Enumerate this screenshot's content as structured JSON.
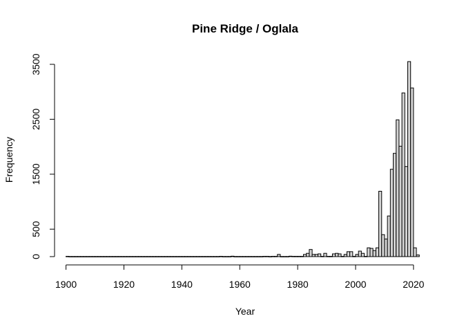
{
  "chart_data": {
    "type": "bar",
    "title": "Pine Ridge / Oglala",
    "xlabel": "Year",
    "ylabel": "Frequency",
    "xlim": [
      1900,
      2023
    ],
    "ylim": [
      0,
      3500
    ],
    "xticks": [
      1900,
      1920,
      1940,
      1960,
      1980,
      2000,
      2020
    ],
    "yticks": [
      0,
      500,
      1500,
      2500,
      3500
    ],
    "grid": false,
    "bar_color": "#d3d3d3",
    "bin_width": 1,
    "x": [
      1901,
      1902,
      1903,
      1904,
      1905,
      1906,
      1907,
      1908,
      1909,
      1910,
      1911,
      1912,
      1913,
      1914,
      1915,
      1916,
      1917,
      1918,
      1919,
      1920,
      1921,
      1922,
      1923,
      1924,
      1925,
      1926,
      1927,
      1928,
      1929,
      1930,
      1931,
      1932,
      1933,
      1934,
      1935,
      1936,
      1937,
      1938,
      1939,
      1940,
      1941,
      1942,
      1943,
      1944,
      1945,
      1946,
      1947,
      1948,
      1949,
      1950,
      1951,
      1952,
      1953,
      1954,
      1955,
      1956,
      1957,
      1958,
      1959,
      1960,
      1961,
      1962,
      1963,
      1964,
      1965,
      1966,
      1967,
      1968,
      1969,
      1970,
      1971,
      1972,
      1973,
      1974,
      1975,
      1976,
      1977,
      1978,
      1979,
      1980,
      1981,
      1982,
      1983,
      1984,
      1985,
      1986,
      1987,
      1988,
      1989,
      1990,
      1991,
      1992,
      1993,
      1994,
      1995,
      1996,
      1997,
      1998,
      1999,
      2000,
      2001,
      2002,
      2003,
      2004,
      2005,
      2006,
      2007,
      2008,
      2009,
      2010,
      2011,
      2012,
      2013,
      2014,
      2015,
      2016,
      2017,
      2018,
      2019,
      2020,
      2021,
      2022
    ],
    "values": [
      5,
      2,
      2,
      2,
      2,
      2,
      2,
      2,
      2,
      2,
      2,
      2,
      2,
      2,
      2,
      2,
      2,
      2,
      2,
      2,
      2,
      2,
      2,
      2,
      2,
      2,
      2,
      2,
      2,
      2,
      2,
      2,
      2,
      2,
      2,
      2,
      2,
      2,
      2,
      2,
      2,
      2,
      2,
      2,
      2,
      2,
      2,
      2,
      2,
      2,
      2,
      2,
      2,
      5,
      2,
      2,
      2,
      8,
      2,
      2,
      2,
      2,
      2,
      2,
      2,
      2,
      2,
      2,
      5,
      5,
      2,
      5,
      5,
      40,
      2,
      2,
      2,
      8,
      5,
      5,
      5,
      5,
      40,
      60,
      130,
      40,
      40,
      50,
      5,
      60,
      5,
      5,
      50,
      60,
      50,
      5,
      40,
      90,
      90,
      5,
      40,
      100,
      60,
      5,
      160,
      150,
      110,
      160,
      1190,
      400,
      320,
      740,
      1590,
      1880,
      2490,
      2010,
      2980,
      1640,
      3550,
      3070,
      160,
      30
    ]
  }
}
